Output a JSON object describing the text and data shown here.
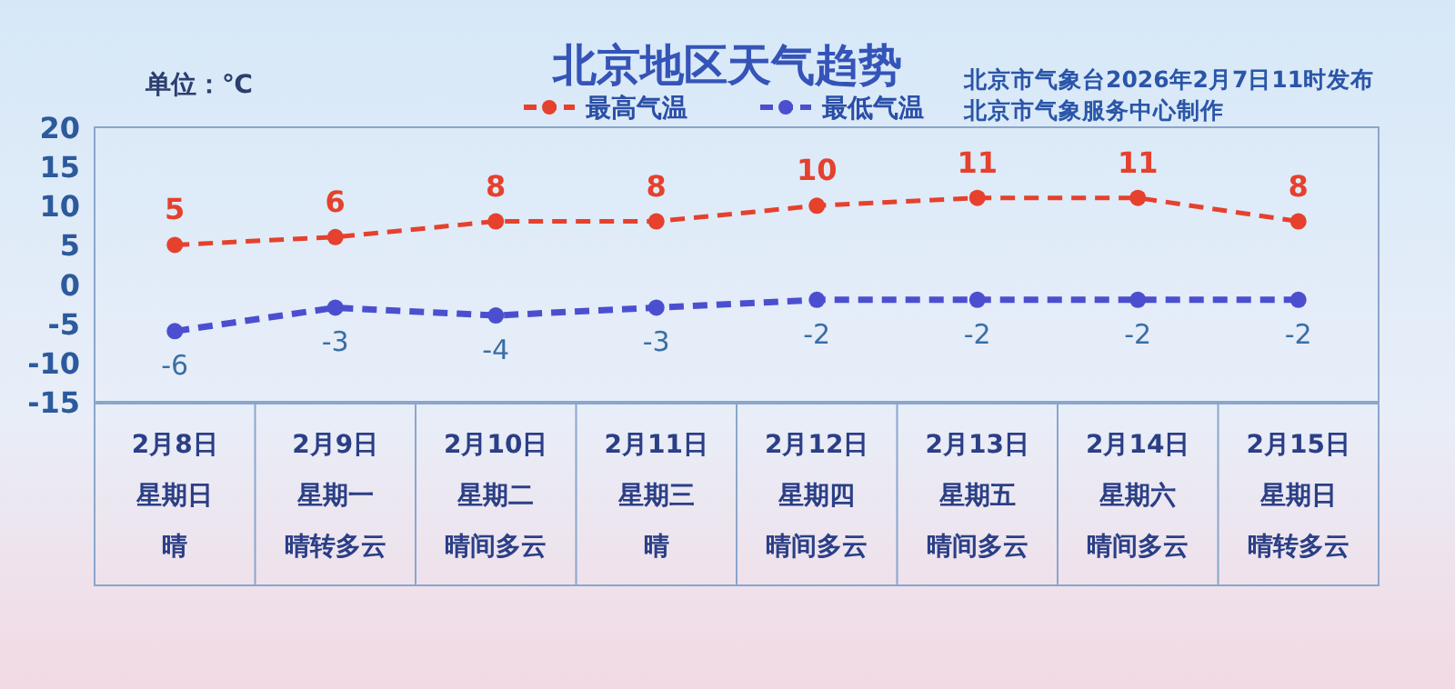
{
  "chart_data": {
    "type": "line",
    "title": "北京地区天气趋势",
    "ylabel": "单位：℃",
    "annotations": [
      "北京市气象台2026年2月7日11时发布",
      "北京市气象服务中心制作",
      "星期日",
      "晴",
      "星期一",
      "晴转多云",
      "星期二",
      "晴间多云",
      "星期三",
      "晴",
      "星期四",
      "晴间多云",
      "星期五",
      "晴间多云",
      "星期六",
      "晴间多云",
      "星期日",
      "晴转多云"
    ],
    "categories": [
      "2月8日",
      "2月9日",
      "2月10日",
      "2月11日",
      "2月12日",
      "2月13日",
      "2月14日",
      "2月15日"
    ],
    "series": [
      {
        "name": "最高气温",
        "color": "#e5412d",
        "values": [
          5,
          6,
          8,
          8,
          10,
          11,
          11,
          8
        ]
      },
      {
        "name": "最低气温",
        "color": "#4b4fcf",
        "values": [
          -6,
          -3,
          -4,
          -3,
          -2,
          -2,
          -2,
          -2
        ]
      }
    ],
    "ylim": [
      -15,
      20
    ],
    "yticks": [
      -15,
      -10,
      -5,
      0,
      5,
      10,
      15,
      20
    ],
    "grid": false,
    "legend": "top",
    "marker": "circle",
    "line_style": "dashed",
    "data_labels": true
  }
}
